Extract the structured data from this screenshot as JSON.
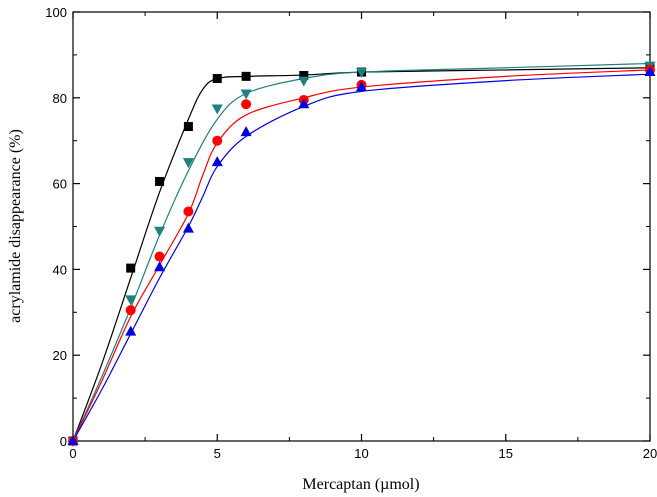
{
  "chart_data": {
    "type": "line",
    "title": "",
    "xlabel": "Mercaptan (µmol)",
    "ylabel": "acrylamide disappearance (%)",
    "xlim": [
      0,
      20
    ],
    "ylim": [
      0,
      100
    ],
    "xticks": [
      0,
      5,
      10,
      15,
      20
    ],
    "yticks": [
      0,
      20,
      40,
      60,
      80,
      100
    ],
    "grid": false,
    "legend": "none",
    "series": [
      {
        "marker": "square",
        "color": "#000000",
        "x": [
          0,
          2,
          3,
          4,
          5,
          6,
          8,
          10,
          20
        ],
        "y": [
          0,
          40.3,
          60.5,
          73.3,
          84.5,
          85.0,
          85.2,
          86.0,
          87.0
        ],
        "curve": [
          [
            0,
            0
          ],
          [
            1,
            18
          ],
          [
            2,
            38
          ],
          [
            3,
            58
          ],
          [
            4,
            75
          ],
          [
            4.5,
            82
          ],
          [
            5,
            84.5
          ],
          [
            6,
            85
          ],
          [
            8,
            85.3
          ],
          [
            10,
            86
          ],
          [
            15,
            86.5
          ],
          [
            20,
            87
          ]
        ]
      },
      {
        "marker": "triangle-down",
        "color": "#1e8080",
        "x": [
          0,
          2,
          3,
          4,
          5,
          6,
          8,
          10,
          20
        ],
        "y": [
          0,
          33.0,
          49.0,
          65.0,
          77.5,
          81.0,
          84.0,
          86.0,
          87.5
        ],
        "curve": [
          [
            0,
            0
          ],
          [
            1,
            15
          ],
          [
            2,
            31
          ],
          [
            3,
            48
          ],
          [
            4,
            63
          ],
          [
            5,
            75
          ],
          [
            6,
            81
          ],
          [
            8,
            84.5
          ],
          [
            10,
            86
          ],
          [
            15,
            87
          ],
          [
            20,
            88
          ]
        ]
      },
      {
        "marker": "circle",
        "color": "#ff0000",
        "x": [
          0,
          2,
          3,
          4,
          5,
          6,
          8,
          10,
          20
        ],
        "y": [
          0,
          30.5,
          43.0,
          53.5,
          70.0,
          78.5,
          79.5,
          83.0,
          86.5
        ],
        "curve": [
          [
            0,
            0
          ],
          [
            1,
            14
          ],
          [
            2,
            29
          ],
          [
            3,
            41
          ],
          [
            4,
            53
          ],
          [
            4.5,
            62
          ],
          [
            5,
            69.5
          ],
          [
            6,
            76
          ],
          [
            8,
            80
          ],
          [
            10,
            82.5
          ],
          [
            15,
            85
          ],
          [
            20,
            86.5
          ]
        ]
      },
      {
        "marker": "triangle-up",
        "color": "#0000e0",
        "x": [
          0,
          2,
          3,
          4,
          5,
          6,
          8,
          10,
          20
        ],
        "y": [
          0,
          25.5,
          40.5,
          49.5,
          65.0,
          72.0,
          78.5,
          82.5,
          86.0
        ],
        "curve": [
          [
            0,
            0
          ],
          [
            1,
            12
          ],
          [
            2,
            25
          ],
          [
            3,
            38
          ],
          [
            4,
            50
          ],
          [
            4.5,
            57
          ],
          [
            5,
            64
          ],
          [
            6,
            71
          ],
          [
            8,
            78
          ],
          [
            10,
            81.5
          ],
          [
            15,
            84
          ],
          [
            20,
            85.5
          ]
        ]
      }
    ]
  }
}
